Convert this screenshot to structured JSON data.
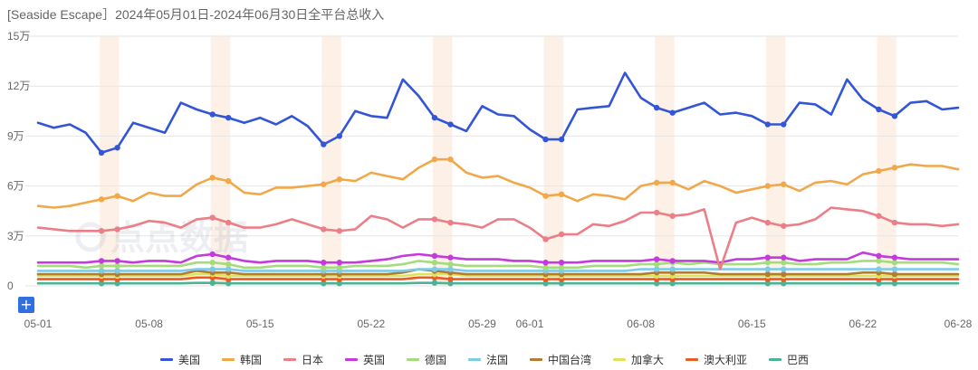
{
  "chart_data": {
    "type": "line",
    "title": "[Seaside Escape］2024年05月01日-2024年06月30日全平台总收入",
    "ylim": [
      0,
      150000
    ],
    "y_ticks": [
      0,
      30000,
      60000,
      90000,
      120000,
      150000
    ],
    "y_tick_labels": [
      "0",
      "3万",
      "6万",
      "9万",
      "12万",
      "15万"
    ],
    "x_ticks": [
      {
        "day": 0,
        "label": "05-01"
      },
      {
        "day": 7,
        "label": "05-08"
      },
      {
        "day": 14,
        "label": "05-15"
      },
      {
        "day": 21,
        "label": "05-22"
      },
      {
        "day": 28,
        "label": "05-29"
      },
      {
        "day": 31,
        "label": "06-01"
      },
      {
        "day": 38,
        "label": "06-08"
      },
      {
        "day": 45,
        "label": "06-15"
      },
      {
        "day": 52,
        "label": "06-22"
      },
      {
        "day": 58,
        "label": "06-28"
      }
    ],
    "highlight_days": [
      4,
      11,
      18,
      25,
      32,
      39,
      46,
      53
    ],
    "marker_days": [
      4,
      5,
      11,
      12,
      18,
      19,
      25,
      26,
      32,
      33,
      39,
      40,
      46,
      47,
      53,
      54
    ],
    "legend_position": "bottom",
    "grid": true,
    "series": [
      {
        "name": "美国",
        "color": "#3355d6",
        "values": [
          98000,
          95000,
          97000,
          92000,
          80000,
          83000,
          98000,
          95000,
          92000,
          110000,
          106000,
          103000,
          101000,
          98000,
          101000,
          97000,
          102000,
          96000,
          85000,
          90000,
          105000,
          102000,
          101000,
          124000,
          114000,
          101000,
          97000,
          93000,
          108000,
          103000,
          102000,
          94000,
          88000,
          88000,
          106000,
          107000,
          108000,
          128000,
          113000,
          107000,
          104000,
          107000,
          110000,
          103000,
          104000,
          102000,
          97000,
          97000,
          110000,
          109000,
          103000,
          124000,
          112000,
          106000,
          102000,
          110000,
          111000,
          106000,
          107000
        ]
      },
      {
        "name": "韩国",
        "color": "#f0a84a",
        "values": [
          48000,
          47000,
          48000,
          50000,
          52000,
          54000,
          51000,
          56000,
          54000,
          54000,
          61000,
          65000,
          63000,
          56000,
          55000,
          59000,
          59000,
          60000,
          61000,
          64000,
          63000,
          68000,
          66000,
          64000,
          71000,
          76000,
          76000,
          68000,
          65000,
          66000,
          62000,
          59000,
          54000,
          55000,
          51000,
          55000,
          54000,
          52000,
          60000,
          62000,
          62000,
          58000,
          63000,
          60000,
          56000,
          58000,
          60000,
          61000,
          57000,
          62000,
          63000,
          61000,
          67000,
          69000,
          71000,
          73000,
          72000,
          72000,
          70000
        ]
      },
      {
        "name": "日本",
        "color": "#eb7e86",
        "values": [
          35000,
          34000,
          33000,
          33000,
          33000,
          34000,
          36000,
          39000,
          38000,
          35000,
          40000,
          41000,
          38000,
          35000,
          35000,
          37000,
          40000,
          37000,
          34000,
          33000,
          34000,
          42000,
          40000,
          35000,
          40000,
          40000,
          38000,
          37000,
          35000,
          40000,
          40000,
          35000,
          28000,
          31000,
          31000,
          37000,
          36000,
          39000,
          44000,
          44000,
          42000,
          43000,
          46000,
          10000,
          38000,
          41000,
          38000,
          36000,
          37000,
          40000,
          47000,
          46000,
          45000,
          42000,
          38000,
          37000,
          37000,
          36000,
          37000
        ]
      },
      {
        "name": "英国",
        "color": "#c43adb",
        "values": [
          14000,
          14000,
          14000,
          14000,
          15000,
          15000,
          14000,
          15000,
          15000,
          14000,
          18000,
          19000,
          17000,
          15000,
          14000,
          15000,
          15000,
          15000,
          14000,
          14000,
          14000,
          15000,
          16000,
          18000,
          19000,
          18000,
          17000,
          16000,
          16000,
          16000,
          15000,
          15000,
          14000,
          14000,
          14000,
          15000,
          15000,
          15000,
          15000,
          16000,
          15000,
          15000,
          15000,
          14000,
          16000,
          16000,
          17000,
          17000,
          15000,
          16000,
          16000,
          16000,
          20000,
          18000,
          17000,
          16000,
          16000,
          16000,
          16000
        ]
      },
      {
        "name": "德国",
        "color": "#a4dc7c",
        "values": [
          12000,
          12000,
          12000,
          11000,
          12000,
          12000,
          12000,
          12000,
          12000,
          12000,
          14000,
          14000,
          13000,
          11000,
          11000,
          12000,
          12000,
          12000,
          11000,
          11000,
          12000,
          12000,
          12000,
          13000,
          15000,
          14000,
          13000,
          12000,
          12000,
          12000,
          12000,
          12000,
          11000,
          11000,
          11000,
          12000,
          12000,
          12000,
          13000,
          13000,
          14000,
          13000,
          14000,
          13000,
          13000,
          13000,
          14000,
          14000,
          13000,
          13000,
          14000,
          14000,
          15000,
          15000,
          14000,
          14000,
          14000,
          14000,
          13000
        ]
      },
      {
        "name": "法国",
        "color": "#7ccbe8",
        "values": [
          9000,
          9000,
          9000,
          9000,
          9000,
          9000,
          9000,
          9000,
          9000,
          9000,
          10000,
          10000,
          10000,
          9000,
          9000,
          9000,
          9000,
          9000,
          9000,
          9000,
          9000,
          9000,
          9000,
          9000,
          10000,
          10000,
          10000,
          9000,
          9000,
          9000,
          9000,
          9000,
          9000,
          9000,
          9000,
          9000,
          9000,
          9000,
          10000,
          10000,
          10000,
          10000,
          10000,
          10000,
          10000,
          10000,
          10000,
          10000,
          10000,
          10000,
          10000,
          10000,
          10000,
          10000,
          10000,
          10000,
          10000,
          10000,
          10000
        ]
      },
      {
        "name": "中国台湾",
        "color": "#b47b34",
        "values": [
          7000,
          7000,
          7000,
          7000,
          7000,
          7000,
          7000,
          7000,
          7000,
          7000,
          9000,
          8000,
          8000,
          7000,
          7000,
          7000,
          7000,
          7000,
          7000,
          7000,
          7000,
          7000,
          7000,
          8000,
          10000,
          9000,
          8000,
          7000,
          7000,
          7000,
          7000,
          7000,
          7000,
          7000,
          7000,
          7000,
          7000,
          7000,
          7000,
          8000,
          8000,
          8000,
          8000,
          7000,
          7000,
          7000,
          7000,
          7000,
          7000,
          7000,
          7000,
          7000,
          8000,
          8000,
          7000,
          7000,
          7000,
          7000,
          7000
        ]
      },
      {
        "name": "加拿大",
        "color": "#dfe35b",
        "values": [
          6000,
          6000,
          6000,
          6000,
          6000,
          6000,
          6000,
          6000,
          6000,
          6000,
          7000,
          7000,
          6000,
          6000,
          6000,
          6000,
          6000,
          6000,
          6000,
          6000,
          6000,
          6000,
          6000,
          6000,
          7000,
          7000,
          7000,
          6000,
          6000,
          6000,
          6000,
          6000,
          6000,
          6000,
          6000,
          6000,
          6000,
          6000,
          6000,
          6000,
          6000,
          6000,
          6000,
          6000,
          6000,
          6000,
          6000,
          6000,
          6000,
          6000,
          6000,
          6000,
          6000,
          6000,
          6000,
          6000,
          6000,
          6000,
          6000
        ]
      },
      {
        "name": "澳大利亚",
        "color": "#ea5a24",
        "values": [
          4000,
          4000,
          4000,
          4000,
          4000,
          4000,
          4000,
          4000,
          4000,
          4000,
          5000,
          5000,
          4000,
          4000,
          4000,
          4000,
          4000,
          4000,
          4000,
          4000,
          4000,
          4000,
          4000,
          4000,
          5000,
          5000,
          4000,
          4000,
          4000,
          4000,
          4000,
          4000,
          4000,
          4000,
          4000,
          4000,
          4000,
          4000,
          4000,
          4000,
          4000,
          4000,
          4000,
          4000,
          4000,
          4000,
          4000,
          4000,
          4000,
          4000,
          4000,
          4000,
          4000,
          4000,
          4000,
          4000,
          4000,
          4000,
          4000
        ]
      },
      {
        "name": "巴西",
        "color": "#4bb497",
        "values": [
          1500,
          1500,
          1500,
          1500,
          1500,
          1500,
          1500,
          1500,
          1500,
          1500,
          1800,
          1800,
          1500,
          1500,
          1500,
          1500,
          1500,
          1500,
          1500,
          1500,
          1500,
          1500,
          1500,
          1500,
          1800,
          1800,
          1500,
          1500,
          1500,
          1500,
          1500,
          1500,
          1500,
          1500,
          1500,
          1500,
          1500,
          1500,
          1500,
          1500,
          1500,
          1500,
          1500,
          1500,
          1500,
          1500,
          1500,
          1500,
          1500,
          1500,
          1500,
          1500,
          1500,
          1500,
          1500,
          1500,
          1500,
          1500,
          1500
        ]
      }
    ]
  },
  "controls": {
    "add_label": "+"
  },
  "watermark": {
    "text": "点点数据"
  }
}
